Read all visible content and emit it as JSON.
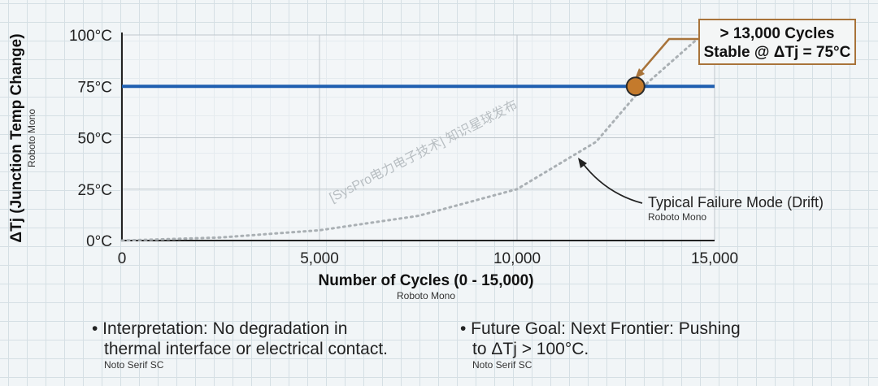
{
  "chart_data": {
    "type": "line",
    "xlabel": "Number of Cycles (0 - 15,000)",
    "xlabel_font_note": "Roboto Mono",
    "ylabel": "ΔTj (Junction Temp Change)",
    "ylabel_font_note": "Roboto Mono",
    "xlim": [
      0,
      15000
    ],
    "ylim": [
      0,
      100
    ],
    "xticks": [
      0,
      5000,
      10000,
      15000
    ],
    "xtick_labels": [
      "0",
      "5,000",
      "10,000",
      "15,000"
    ],
    "yticks": [
      0,
      25,
      50,
      75,
      100
    ],
    "ytick_labels": [
      "0°C",
      "25°C",
      "50°C",
      "75°C",
      "100°C"
    ],
    "grid": true,
    "series": [
      {
        "name": "Stable",
        "style": "solid",
        "color": "#1f5fb0",
        "x": [
          0,
          15000
        ],
        "y": [
          75,
          75
        ]
      },
      {
        "name": "Typical Failure Mode (Drift)",
        "style": "dotted",
        "color": "#aab0b4",
        "x": [
          0,
          2500,
          5000,
          7500,
          10000,
          12000,
          13200,
          14500
        ],
        "y": [
          0,
          1.5,
          5,
          12,
          25,
          48,
          75,
          97
        ]
      }
    ],
    "marker": {
      "x": 13000,
      "y": 75,
      "color": "#c47a2c"
    },
    "annotations": [
      {
        "lines": [
          "> 13,000 Cycles",
          "Stable @ ΔTj = 75°C"
        ],
        "color": "#a8733a"
      },
      {
        "text": "Typical Failure Mode (Drift)",
        "sub": "Roboto Mono"
      }
    ],
    "watermark": "[SysPro电力电子技术] 知识星球发布"
  },
  "notes": [
    {
      "lines": [
        "• Interpretation: No degradation in",
        "thermal interface or electrical contact."
      ],
      "sub": "Noto Serif SC"
    },
    {
      "lines": [
        "• Future Goal: Next Frontier: Pushing",
        "to ΔTj > 100°C."
      ],
      "sub": "Noto Serif SC"
    }
  ]
}
